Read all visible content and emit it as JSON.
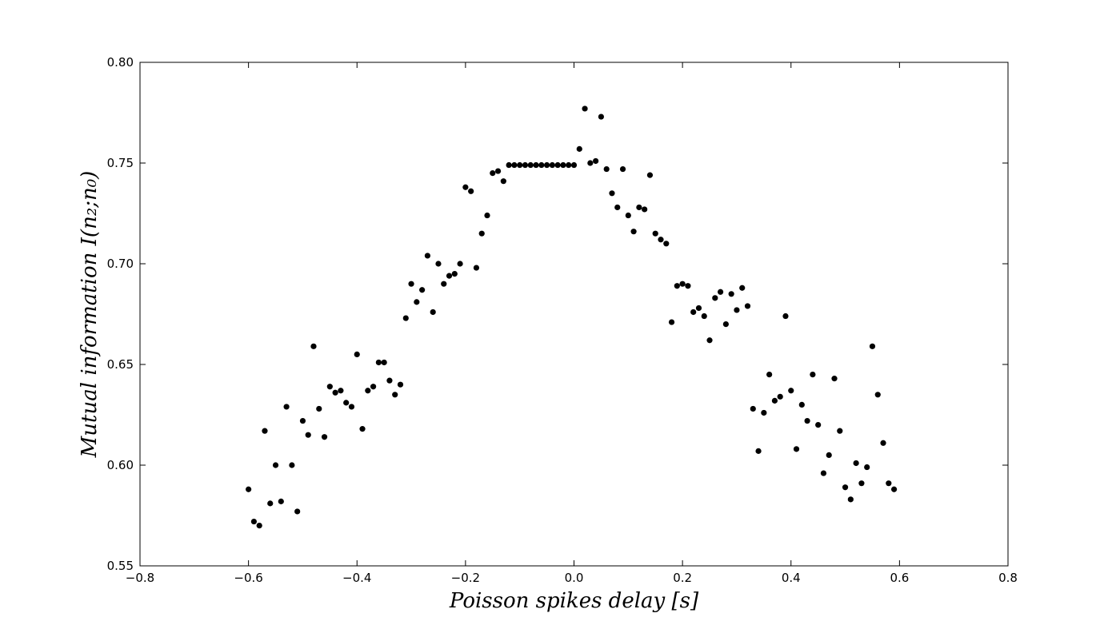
{
  "chart_data": {
    "type": "scatter",
    "title": "",
    "xlabel": "Poisson spikes delay [s]",
    "ylabel": "Mutual information I(n₂;n₀)",
    "xlim": [
      -0.8,
      0.8
    ],
    "ylim": [
      0.55,
      0.8
    ],
    "xticks": [
      -0.8,
      -0.6,
      -0.4,
      -0.2,
      0.0,
      0.2,
      0.4,
      0.6,
      0.8
    ],
    "yticks": [
      0.55,
      0.6,
      0.65,
      0.7,
      0.75,
      0.8
    ],
    "xtick_labels": [
      "−0.8",
      "−0.6",
      "−0.4",
      "−0.2",
      "0.0",
      "0.2",
      "0.4",
      "0.6",
      "0.8"
    ],
    "ytick_labels": [
      "0.55",
      "0.60",
      "0.65",
      "0.70",
      "0.75",
      "0.80"
    ],
    "grid": false,
    "marker_color": "#000000",
    "series": [
      {
        "points": [
          [
            -0.6,
            0.588
          ],
          [
            -0.59,
            0.572
          ],
          [
            -0.58,
            0.57
          ],
          [
            -0.57,
            0.617
          ],
          [
            -0.56,
            0.581
          ],
          [
            -0.55,
            0.6
          ],
          [
            -0.54,
            0.582
          ],
          [
            -0.53,
            0.629
          ],
          [
            -0.52,
            0.6
          ],
          [
            -0.51,
            0.577
          ],
          [
            -0.5,
            0.622
          ],
          [
            -0.49,
            0.615
          ],
          [
            -0.48,
            0.659
          ],
          [
            -0.47,
            0.628
          ],
          [
            -0.46,
            0.614
          ],
          [
            -0.45,
            0.639
          ],
          [
            -0.44,
            0.636
          ],
          [
            -0.43,
            0.637
          ],
          [
            -0.42,
            0.631
          ],
          [
            -0.41,
            0.629
          ],
          [
            -0.4,
            0.655
          ],
          [
            -0.39,
            0.618
          ],
          [
            -0.38,
            0.637
          ],
          [
            -0.37,
            0.639
          ],
          [
            -0.36,
            0.651
          ],
          [
            -0.35,
            0.651
          ],
          [
            -0.34,
            0.642
          ],
          [
            -0.33,
            0.635
          ],
          [
            -0.32,
            0.64
          ],
          [
            -0.31,
            0.673
          ],
          [
            -0.3,
            0.69
          ],
          [
            -0.29,
            0.681
          ],
          [
            -0.28,
            0.687
          ],
          [
            -0.27,
            0.704
          ],
          [
            -0.26,
            0.676
          ],
          [
            -0.25,
            0.7
          ],
          [
            -0.24,
            0.69
          ],
          [
            -0.23,
            0.694
          ],
          [
            -0.22,
            0.695
          ],
          [
            -0.21,
            0.7
          ],
          [
            -0.2,
            0.738
          ],
          [
            -0.19,
            0.736
          ],
          [
            -0.18,
            0.698
          ],
          [
            -0.17,
            0.715
          ],
          [
            -0.16,
            0.724
          ],
          [
            -0.15,
            0.745
          ],
          [
            -0.14,
            0.746
          ],
          [
            -0.13,
            0.741
          ],
          [
            -0.12,
            0.749
          ],
          [
            -0.11,
            0.749
          ],
          [
            -0.1,
            0.749
          ],
          [
            -0.09,
            0.749
          ],
          [
            -0.08,
            0.749
          ],
          [
            -0.07,
            0.749
          ],
          [
            -0.06,
            0.749
          ],
          [
            -0.05,
            0.749
          ],
          [
            -0.04,
            0.749
          ],
          [
            -0.03,
            0.749
          ],
          [
            -0.02,
            0.749
          ],
          [
            -0.01,
            0.749
          ],
          [
            0.0,
            0.749
          ],
          [
            0.01,
            0.757
          ],
          [
            0.02,
            0.777
          ],
          [
            0.03,
            0.75
          ],
          [
            0.04,
            0.751
          ],
          [
            0.05,
            0.773
          ],
          [
            0.06,
            0.747
          ],
          [
            0.07,
            0.735
          ],
          [
            0.08,
            0.728
          ],
          [
            0.09,
            0.747
          ],
          [
            0.1,
            0.724
          ],
          [
            0.11,
            0.716
          ],
          [
            0.12,
            0.728
          ],
          [
            0.13,
            0.727
          ],
          [
            0.14,
            0.744
          ],
          [
            0.15,
            0.715
          ],
          [
            0.16,
            0.712
          ],
          [
            0.17,
            0.71
          ],
          [
            0.18,
            0.671
          ],
          [
            0.19,
            0.689
          ],
          [
            0.2,
            0.69
          ],
          [
            0.21,
            0.689
          ],
          [
            0.22,
            0.676
          ],
          [
            0.23,
            0.678
          ],
          [
            0.24,
            0.674
          ],
          [
            0.25,
            0.662
          ],
          [
            0.26,
            0.683
          ],
          [
            0.27,
            0.686
          ],
          [
            0.28,
            0.67
          ],
          [
            0.29,
            0.685
          ],
          [
            0.3,
            0.677
          ],
          [
            0.31,
            0.688
          ],
          [
            0.32,
            0.679
          ],
          [
            0.33,
            0.628
          ],
          [
            0.34,
            0.607
          ],
          [
            0.35,
            0.626
          ],
          [
            0.36,
            0.645
          ],
          [
            0.37,
            0.632
          ],
          [
            0.38,
            0.634
          ],
          [
            0.39,
            0.674
          ],
          [
            0.4,
            0.637
          ],
          [
            0.41,
            0.608
          ],
          [
            0.42,
            0.63
          ],
          [
            0.43,
            0.622
          ],
          [
            0.44,
            0.645
          ],
          [
            0.45,
            0.62
          ],
          [
            0.46,
            0.596
          ],
          [
            0.47,
            0.605
          ],
          [
            0.48,
            0.643
          ],
          [
            0.49,
            0.617
          ],
          [
            0.5,
            0.589
          ],
          [
            0.51,
            0.583
          ],
          [
            0.52,
            0.601
          ],
          [
            0.53,
            0.591
          ],
          [
            0.54,
            0.599
          ],
          [
            0.55,
            0.659
          ],
          [
            0.56,
            0.635
          ],
          [
            0.57,
            0.611
          ],
          [
            0.58,
            0.591
          ],
          [
            0.59,
            0.588
          ]
        ]
      }
    ]
  }
}
